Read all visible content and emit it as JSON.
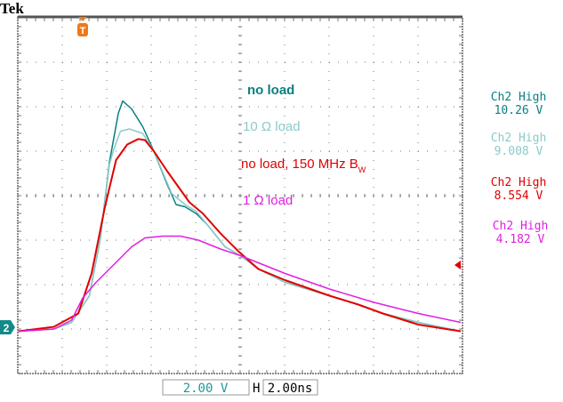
{
  "brand": "Tek",
  "readouts": {
    "vertical_scale": "2.00 V",
    "horizontal_label": "H",
    "horizontal_scale": "2.00ns"
  },
  "markers": {
    "trigger_label": "T",
    "channel_label": "2",
    "trigger_color": "#f07818",
    "channel_color": "#138a8a",
    "trigger_level_color": "#e00000"
  },
  "chart_data": {
    "type": "line",
    "title": "",
    "xlabel": "",
    "ylabel": "",
    "x_units": "ns",
    "y_units": "V",
    "x_per_div": 2,
    "y_per_div": 2,
    "xlim": [
      -2.92,
      17.08
    ],
    "ylim": [
      -2,
      14
    ],
    "grid": true,
    "annotations": [
      {
        "text": "no load",
        "color": "#0a7f7f"
      },
      {
        "text": "10 Ω load",
        "color": "#8ccaca"
      },
      {
        "text": "no load, 150 MHz B",
        "subscript": "W",
        "color": "#e00000"
      },
      {
        "text": "1 Ω load",
        "color": "#e020e0"
      }
    ],
    "measurements": [
      {
        "label": "Ch2 High",
        "value": "10.26 V",
        "color": "#0a7f7f"
      },
      {
        "label": "Ch2 High",
        "value": "9.008 V",
        "color": "#8ccaca"
      },
      {
        "label": "Ch2 High",
        "value": "8.554 V",
        "color": "#e00000"
      },
      {
        "label": "Ch2 High",
        "value": "4.182 V",
        "color": "#e020e0"
      }
    ],
    "series": [
      {
        "color": "#0a7f7f",
        "points": [
          [
            -2.9,
            -0.1
          ],
          [
            -1.3,
            0
          ],
          [
            -0.5,
            0.3
          ],
          [
            0.3,
            1.5
          ],
          [
            0.8,
            4.1
          ],
          [
            1.2,
            7.5
          ],
          [
            1.6,
            9.7
          ],
          [
            1.8,
            10.26
          ],
          [
            2.2,
            9.9
          ],
          [
            2.7,
            9.1
          ],
          [
            3.2,
            8.0
          ],
          [
            3.8,
            6.5
          ],
          [
            4.2,
            5.6
          ],
          [
            4.6,
            5.5
          ],
          [
            5.1,
            5.2
          ],
          [
            5.6,
            4.7
          ],
          [
            6.4,
            3.7
          ],
          [
            7.1,
            3.3
          ],
          [
            7.9,
            2.7
          ],
          [
            9.1,
            2.1
          ],
          [
            11.1,
            1.5
          ],
          [
            12.4,
            1.1
          ],
          [
            13.5,
            0.7
          ],
          [
            15.1,
            0.3
          ],
          [
            17.0,
            -0.1
          ]
        ]
      },
      {
        "color": "#8ccaca",
        "points": [
          [
            -2.9,
            -0.1
          ],
          [
            -1.3,
            0
          ],
          [
            -0.5,
            0.3
          ],
          [
            0.3,
            1.5
          ],
          [
            0.8,
            4.1
          ],
          [
            1.2,
            7.4
          ],
          [
            1.4,
            8.1
          ],
          [
            1.7,
            8.9
          ],
          [
            2.1,
            9.0
          ],
          [
            2.7,
            8.8
          ],
          [
            3.2,
            8.0
          ],
          [
            4.0,
            6.1
          ],
          [
            4.6,
            5.6
          ],
          [
            5.1,
            5.3
          ],
          [
            5.6,
            4.7
          ],
          [
            6.4,
            3.7
          ],
          [
            7.1,
            3.3
          ],
          [
            7.9,
            2.7
          ],
          [
            9.1,
            2.1
          ],
          [
            11.1,
            1.5
          ],
          [
            12.4,
            1.1
          ],
          [
            13.5,
            0.7
          ],
          [
            15.1,
            0.3
          ],
          [
            17.0,
            -0.1
          ]
        ]
      },
      {
        "color": "#e00000",
        "points": [
          [
            -2.9,
            -0.1
          ],
          [
            -1.3,
            0.1
          ],
          [
            -0.2,
            0.7
          ],
          [
            0.4,
            2.5
          ],
          [
            1.0,
            5.5
          ],
          [
            1.5,
            7.6
          ],
          [
            2.0,
            8.3
          ],
          [
            2.5,
            8.55
          ],
          [
            2.8,
            8.5
          ],
          [
            3.2,
            8.0
          ],
          [
            3.8,
            7.1
          ],
          [
            4.3,
            6.4
          ],
          [
            4.8,
            5.7
          ],
          [
            5.4,
            5.2
          ],
          [
            6.2,
            4.3
          ],
          [
            7.0,
            3.5
          ],
          [
            7.9,
            2.7
          ],
          [
            9.1,
            2.2
          ],
          [
            11.1,
            1.5
          ],
          [
            12.4,
            1.1
          ],
          [
            13.5,
            0.7
          ],
          [
            15.1,
            0.2
          ],
          [
            17.0,
            -0.1
          ]
        ]
      },
      {
        "color": "#e020e0",
        "points": [
          [
            -2.9,
            -0.1
          ],
          [
            -1.3,
            0
          ],
          [
            -0.5,
            0.4
          ],
          [
            0,
            1.4
          ],
          [
            0.6,
            2.1
          ],
          [
            1.4,
            2.9
          ],
          [
            2.2,
            3.7
          ],
          [
            2.8,
            4.1
          ],
          [
            3.6,
            4.18
          ],
          [
            4.4,
            4.18
          ],
          [
            5.2,
            4.0
          ],
          [
            6.2,
            3.6
          ],
          [
            7.1,
            3.3
          ],
          [
            9.1,
            2.5
          ],
          [
            11.1,
            1.8
          ],
          [
            13.1,
            1.2
          ],
          [
            15.1,
            0.7
          ],
          [
            17.0,
            0.3
          ]
        ]
      }
    ]
  }
}
